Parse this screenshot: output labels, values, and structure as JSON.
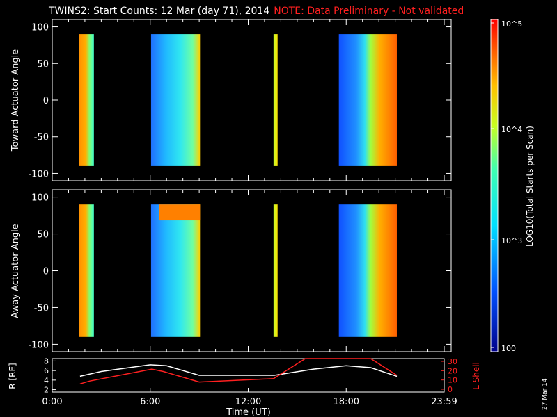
{
  "title": "TWINS2: Start Counts: 12 Mar (day  71), 2014",
  "note": "NOTE: Data Preliminary - Not validated",
  "stamp": "27 Mar 14",
  "chart_data": [
    {
      "type": "heatmap",
      "ylabel": "Toward Actuator Angle",
      "ylim": [
        -110,
        110
      ],
      "yticks": [
        "100",
        "50",
        "0",
        "-50",
        "-100"
      ],
      "blocks": [
        {
          "t0": 1.65,
          "t1": 2.55,
          "tone": "mixed-warm"
        },
        {
          "t0": 6.05,
          "t1": 9.05,
          "tone": "cyan"
        },
        {
          "t0": 13.55,
          "t1": 13.8,
          "tone": "yellow"
        },
        {
          "t0": 17.55,
          "t1": 21.1,
          "tone": "blue-orange"
        }
      ]
    },
    {
      "type": "heatmap",
      "ylabel": "Away Actuator Angle",
      "ylim": [
        -110,
        110
      ],
      "yticks": [
        "100",
        "50",
        "0",
        "-50",
        "-100"
      ],
      "blocks": [
        {
          "t0": 1.65,
          "t1": 2.55,
          "tone": "mixed-warm"
        },
        {
          "t0": 6.05,
          "t1": 9.05,
          "tone": "cyan-top-orange"
        },
        {
          "t0": 13.55,
          "t1": 13.8,
          "tone": "yellow"
        },
        {
          "t0": 17.55,
          "t1": 21.1,
          "tone": "blue-orange"
        }
      ]
    },
    {
      "type": "line",
      "ylabel_left": "R [RE]",
      "ylabel_right": "L Shell",
      "xlabel": "Time (UT)",
      "xticks": [
        "0:00",
        "6:00",
        "12:00",
        "18:00",
        "23:59"
      ],
      "xlim": [
        0,
        24
      ],
      "left_yticks": [
        "2",
        "4",
        "6",
        "8"
      ],
      "right_yticks": [
        "0",
        "10",
        "20",
        "30"
      ],
      "series": [
        {
          "color": "#ffffff",
          "x": [
            1.7,
            3,
            6,
            7,
            9,
            13.6,
            16,
            18,
            19.5,
            21.1
          ],
          "y": [
            4.8,
            5.8,
            7.2,
            7.0,
            5.0,
            5.0,
            6.3,
            7.0,
            6.6,
            4.8
          ]
        },
        {
          "color": "#ff2020",
          "x": [
            1.7,
            2.3,
            6.1,
            6.8,
            9.0,
            13.55,
            15.5,
            19.5,
            21.1
          ],
          "y": [
            3.2,
            3.8,
            6.3,
            5.8,
            3.6,
            4.3,
            8.5,
            8.5,
            5.0
          ]
        }
      ]
    }
  ],
  "colorbar": {
    "label": "LOG10(Total Starts per Scan)",
    "ticks": [
      "10^5",
      "10^4",
      "10^3",
      "100"
    ]
  }
}
